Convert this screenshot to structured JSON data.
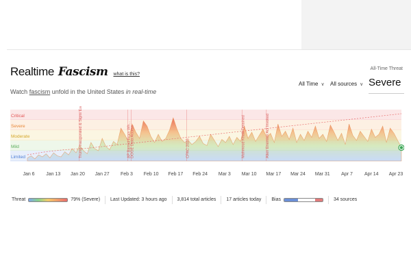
{
  "header": {
    "title": "Realtime",
    "title_blackletter": "Fascism",
    "what_is_this": "what is this?",
    "subtitle_start": "Watch ",
    "subtitle_link": "fascism",
    "subtitle_middle": " unfold in the United States ",
    "subtitle_italic": "in real-time"
  },
  "controls": {
    "time_range": "All Time",
    "sources": "All sources"
  },
  "threat": {
    "label": "All-Time Threat",
    "level": "Severe"
  },
  "chart_data": {
    "type": "area",
    "levels": [
      {
        "label": "Critical",
        "color": "#e25555"
      },
      {
        "label": "Severe",
        "color": "#e8883a"
      },
      {
        "label": "Moderate",
        "color": "#d4a72c"
      },
      {
        "label": "Mild",
        "color": "#5cae5c"
      },
      {
        "label": "Limited",
        "color": "#4f7fd6"
      }
    ],
    "x_ticks": [
      "Jan 6",
      "Jan 13",
      "Jan 20",
      "Jan 27",
      "Feb 3",
      "Feb 10",
      "Feb 17",
      "Feb 24",
      "Mar 3",
      "Mar 10",
      "Mar 17",
      "Mar 24",
      "Mar 31",
      "Apr 7",
      "Apr 14",
      "Apr 23"
    ],
    "x_start": "2025-01-05",
    "x_end": "2025-04-23",
    "y_range": [
      0,
      5
    ],
    "series": [
      {
        "values": [
          0.3,
          0.5,
          0.2,
          0.6,
          0.4,
          0.7,
          0.3,
          0.8,
          0.5,
          0.4,
          0.9,
          0.6,
          1.2,
          0.8,
          1.5,
          1.0,
          0.7,
          1.8,
          1.2,
          1.0,
          2.2,
          1.4,
          1.1,
          1.9,
          1.6,
          3.2,
          2.6,
          1.9,
          3.6,
          2.8,
          2.2,
          3.9,
          3.4,
          2.4,
          1.8,
          2.6,
          1.9,
          2.2,
          3.0,
          4.2,
          3.1,
          2.2,
          1.8,
          2.0,
          1.6,
          1.9,
          2.4,
          1.7,
          1.5,
          2.6,
          2.0,
          1.4,
          2.1,
          1.8,
          2.4,
          1.6,
          2.3,
          1.9,
          3.4,
          2.2,
          2.8,
          1.9,
          2.5,
          3.1,
          2.3,
          2.7,
          1.8,
          3.6,
          2.4,
          2.9,
          2.1,
          3.2,
          1.8,
          2.6,
          2.0,
          2.9,
          2.3,
          3.4,
          2.2,
          2.6,
          1.9,
          3.5,
          2.8,
          2.0,
          2.7,
          1.6,
          3.6,
          2.5,
          2.0,
          2.9,
          2.4,
          1.9,
          3.1,
          2.3,
          2.6,
          3.4,
          1.8,
          3.2,
          2.7,
          2.0,
          1.3
        ]
      },
      {
        "values": [
          0.6,
          0.9,
          1.1,
          1.2,
          1.4,
          1.6,
          1.8,
          2.0,
          2.2,
          2.4,
          2.6,
          2.8,
          3.0,
          3.2,
          3.4,
          3.6,
          3.8,
          4.0,
          4.2,
          4.4,
          4.6
        ]
      }
    ],
    "events": [
      {
        "label": "Trump Inaugurated & Signs Executive Orders",
        "x": "2025-01-20"
      },
      {
        "label": "AP Barred From Wh...",
        "x": "2025-02-03"
      },
      {
        "label": "DOGE Data Access",
        "x": "2025-02-04"
      },
      {
        "label": "CPAC 2025",
        "x": "2025-02-20"
      },
      {
        "label": "Mahmoud Khalil Detained",
        "x": "2025-03-08"
      },
      {
        "label": "Alien Enemies Act Invoked",
        "x": "2025-03-15"
      }
    ],
    "end_point_color": "#3aa655"
  },
  "stats": {
    "threat_label": "Threat",
    "threat_pct": "79% (Severe)",
    "last_updated": "Last Updated: 3 hours ago",
    "articles": "3,814 total articles",
    "articles_today": "17 articles today",
    "bias_label": "Bias",
    "sources": "34 sources"
  }
}
